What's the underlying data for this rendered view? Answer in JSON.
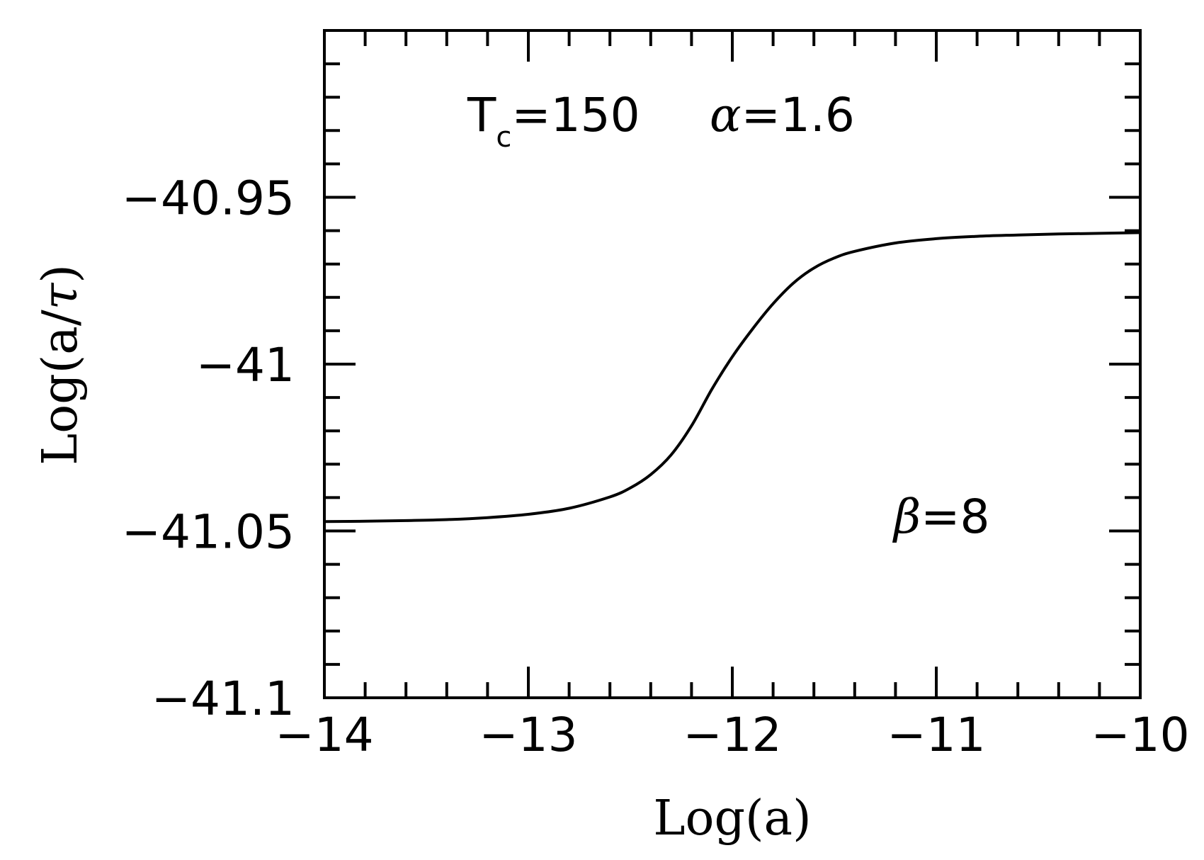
{
  "chart_data": {
    "type": "line",
    "title": "",
    "xlabel": "Log(a)",
    "ylabel_prefix": "Log(a/",
    "ylabel_symbol": "τ",
    "ylabel_suffix": ")",
    "xlim": [
      -14,
      -10
    ],
    "ylim": [
      -41.1,
      -40.9
    ],
    "xticks": [
      -14,
      -13,
      -12,
      -11,
      -10
    ],
    "xtick_labels": [
      "−14",
      "−13",
      "−12",
      "−11",
      "−10"
    ],
    "yticks": [
      -41.1,
      -41.05,
      -41,
      -40.95
    ],
    "ytick_labels": [
      "−41.1",
      "−41.05",
      "−41",
      "−40.95"
    ],
    "x_minor_step": 0.2,
    "y_minor_step": 0.01,
    "grid": false,
    "color": "#000000",
    "series": [
      {
        "x": [
          -14.0,
          -13.8,
          -13.6,
          -13.4,
          -13.2,
          -13.0,
          -12.8,
          -12.6,
          -12.5,
          -12.4,
          -12.3,
          -12.2,
          -12.1,
          -12.0,
          -11.9,
          -11.8,
          -11.7,
          -11.6,
          -11.5,
          -11.4,
          -11.2,
          -11.0,
          -10.8,
          -10.6,
          -10.4,
          -10.2,
          -10.0
        ],
        "y": [
          -41.0472,
          -41.0471,
          -41.0469,
          -41.0466,
          -41.046,
          -41.045,
          -41.0432,
          -41.0398,
          -41.0371,
          -41.0331,
          -41.0272,
          -41.0185,
          -41.0075,
          -40.9978,
          -40.9894,
          -40.9819,
          -40.9757,
          -40.9712,
          -40.9682,
          -40.9662,
          -40.9637,
          -40.9624,
          -40.9617,
          -40.9613,
          -40.961,
          -40.9608,
          -40.9606
        ]
      }
    ],
    "annotations": {
      "tc_symbol": "T",
      "tc_sub": "c",
      "tc_value": "=150",
      "alpha_symbol": "α",
      "alpha_value": "=1.6",
      "beta_symbol": "β",
      "beta_value": "=8"
    }
  }
}
